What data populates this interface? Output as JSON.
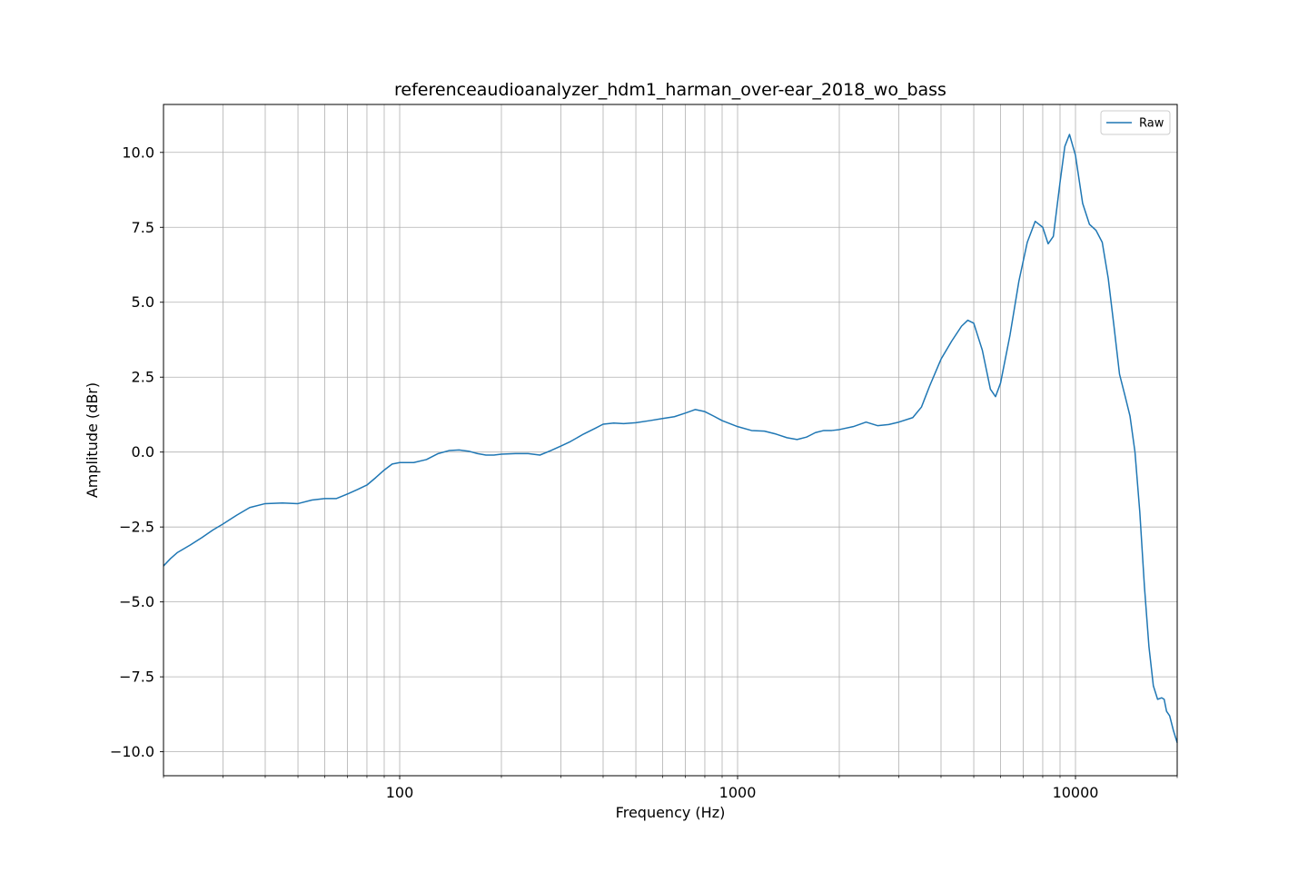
{
  "chart_data": {
    "type": "line",
    "title": "referenceaudioanalyzer_hdm1_harman_over-ear_2018_wo_bass",
    "xlabel": "Frequency (Hz)",
    "ylabel": "Amplitude (dBr)",
    "xscale": "log",
    "xlim": [
      20,
      20000
    ],
    "ylim": [
      -10.8,
      11.6
    ],
    "grid": true,
    "legend_position": "top-right",
    "x_tick_labels": [
      {
        "value": 100,
        "label": "100"
      },
      {
        "value": 1000,
        "label": "1000"
      },
      {
        "value": 10000,
        "label": "10000"
      }
    ],
    "y_tick_labels": [
      {
        "value": 10,
        "label": "10.0"
      },
      {
        "value": 7.5,
        "label": "7.5"
      },
      {
        "value": 5,
        "label": "5.0"
      },
      {
        "value": 2.5,
        "label": "2.5"
      },
      {
        "value": 0,
        "label": "0.0"
      },
      {
        "value": -2.5,
        "label": "−2.5"
      },
      {
        "value": -5,
        "label": "−5.0"
      },
      {
        "value": -7.5,
        "label": "−7.5"
      },
      {
        "value": -10,
        "label": "−10.0"
      }
    ],
    "series": [
      {
        "name": "Raw",
        "color": "#1f77b4",
        "points": [
          [
            20,
            -3.8
          ],
          [
            21,
            -3.55
          ],
          [
            22,
            -3.35
          ],
          [
            24,
            -3.1
          ],
          [
            26,
            -2.85
          ],
          [
            28,
            -2.6
          ],
          [
            30,
            -2.4
          ],
          [
            33,
            -2.1
          ],
          [
            36,
            -1.85
          ],
          [
            40,
            -1.72
          ],
          [
            45,
            -1.7
          ],
          [
            50,
            -1.72
          ],
          [
            55,
            -1.6
          ],
          [
            60,
            -1.55
          ],
          [
            65,
            -1.55
          ],
          [
            70,
            -1.4
          ],
          [
            75,
            -1.25
          ],
          [
            80,
            -1.1
          ],
          [
            85,
            -0.85
          ],
          [
            90,
            -0.6
          ],
          [
            95,
            -0.4
          ],
          [
            100,
            -0.35
          ],
          [
            110,
            -0.35
          ],
          [
            120,
            -0.25
          ],
          [
            130,
            -0.05
          ],
          [
            140,
            0.05
          ],
          [
            150,
            0.07
          ],
          [
            160,
            0.03
          ],
          [
            170,
            -0.05
          ],
          [
            180,
            -0.1
          ],
          [
            190,
            -0.1
          ],
          [
            200,
            -0.07
          ],
          [
            220,
            -0.05
          ],
          [
            240,
            -0.05
          ],
          [
            260,
            -0.1
          ],
          [
            280,
            0.05
          ],
          [
            300,
            0.2
          ],
          [
            320,
            0.35
          ],
          [
            350,
            0.6
          ],
          [
            380,
            0.8
          ],
          [
            400,
            0.93
          ],
          [
            430,
            0.97
          ],
          [
            460,
            0.95
          ],
          [
            500,
            0.98
          ],
          [
            550,
            1.05
          ],
          [
            600,
            1.12
          ],
          [
            650,
            1.18
          ],
          [
            700,
            1.3
          ],
          [
            750,
            1.42
          ],
          [
            800,
            1.35
          ],
          [
            850,
            1.2
          ],
          [
            900,
            1.05
          ],
          [
            1000,
            0.85
          ],
          [
            1100,
            0.72
          ],
          [
            1200,
            0.7
          ],
          [
            1300,
            0.6
          ],
          [
            1400,
            0.48
          ],
          [
            1500,
            0.42
          ],
          [
            1600,
            0.5
          ],
          [
            1700,
            0.65
          ],
          [
            1800,
            0.72
          ],
          [
            1900,
            0.72
          ],
          [
            2000,
            0.75
          ],
          [
            2200,
            0.85
          ],
          [
            2400,
            1.0
          ],
          [
            2600,
            0.88
          ],
          [
            2800,
            0.92
          ],
          [
            3000,
            1.0
          ],
          [
            3300,
            1.15
          ],
          [
            3500,
            1.5
          ],
          [
            3700,
            2.2
          ],
          [
            4000,
            3.1
          ],
          [
            4300,
            3.7
          ],
          [
            4600,
            4.2
          ],
          [
            4800,
            4.4
          ],
          [
            5000,
            4.3
          ],
          [
            5300,
            3.4
          ],
          [
            5600,
            2.1
          ],
          [
            5800,
            1.85
          ],
          [
            6000,
            2.3
          ],
          [
            6400,
            3.9
          ],
          [
            6800,
            5.7
          ],
          [
            7200,
            7.0
          ],
          [
            7600,
            7.7
          ],
          [
            8000,
            7.5
          ],
          [
            8300,
            6.95
          ],
          [
            8600,
            7.2
          ],
          [
            9000,
            9.0
          ],
          [
            9300,
            10.2
          ],
          [
            9600,
            10.6
          ],
          [
            10000,
            9.9
          ],
          [
            10500,
            8.3
          ],
          [
            11000,
            7.6
          ],
          [
            11500,
            7.4
          ],
          [
            12000,
            7.0
          ],
          [
            12500,
            5.8
          ],
          [
            13000,
            4.2
          ],
          [
            13500,
            2.6
          ],
          [
            14000,
            1.9
          ],
          [
            14500,
            1.2
          ],
          [
            15000,
            0.0
          ],
          [
            15500,
            -2.0
          ],
          [
            16000,
            -4.5
          ],
          [
            16500,
            -6.5
          ],
          [
            17000,
            -7.8
          ],
          [
            17500,
            -8.25
          ],
          [
            18000,
            -8.2
          ],
          [
            18300,
            -8.25
          ],
          [
            18600,
            -8.65
          ],
          [
            19000,
            -8.8
          ],
          [
            19500,
            -9.3
          ],
          [
            20000,
            -9.7
          ]
        ]
      }
    ]
  }
}
